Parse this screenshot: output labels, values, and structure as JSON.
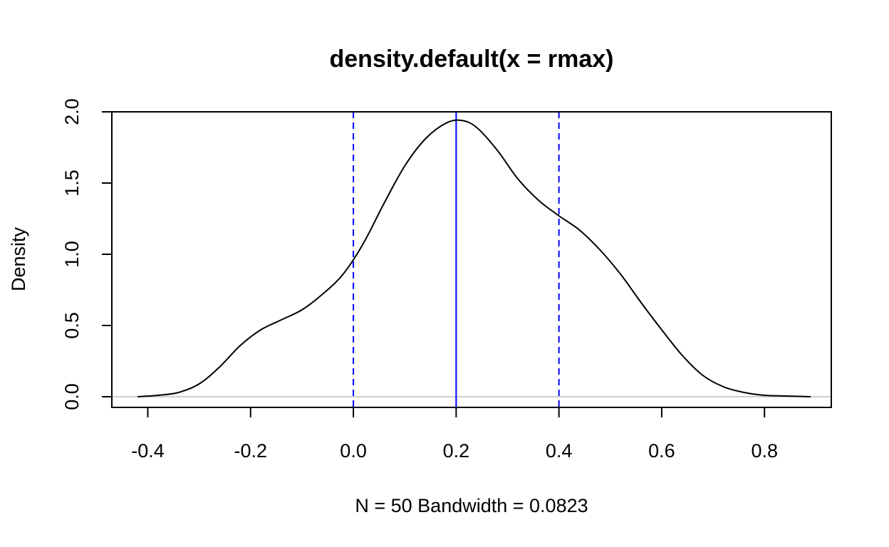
{
  "chart_data": {
    "type": "line",
    "title": "density.default(x = rmax)",
    "xlabel": "N = 50   Bandwidth = 0.0823",
    "ylabel": "Density",
    "xlim": [
      -0.47,
      0.93
    ],
    "ylim": [
      -0.075,
      2.0
    ],
    "x_ticks": [
      -0.4,
      -0.2,
      0.0,
      0.2,
      0.4,
      0.6,
      0.8
    ],
    "x_tick_labels": [
      "-0.4",
      "-0.2",
      "0.0",
      "0.2",
      "0.4",
      "0.6",
      "0.8"
    ],
    "y_ticks": [
      0.0,
      0.5,
      1.0,
      1.5,
      2.0
    ],
    "y_tick_labels": [
      "0.0",
      "0.5",
      "1.0",
      "1.5",
      "2.0"
    ],
    "grid": false,
    "zero_line": {
      "y": 0,
      "color": "#bebebe"
    },
    "series": [
      {
        "color": "#000000",
        "x": [
          -0.42,
          -0.38,
          -0.34,
          -0.3,
          -0.26,
          -0.22,
          -0.18,
          -0.14,
          -0.1,
          -0.06,
          -0.02,
          0.02,
          0.06,
          0.1,
          0.14,
          0.18,
          0.21,
          0.24,
          0.28,
          0.32,
          0.36,
          0.4,
          0.44,
          0.48,
          0.52,
          0.56,
          0.6,
          0.64,
          0.68,
          0.72,
          0.76,
          0.8,
          0.84,
          0.89
        ],
        "y": [
          0.0,
          0.01,
          0.03,
          0.09,
          0.21,
          0.36,
          0.47,
          0.54,
          0.61,
          0.72,
          0.86,
          1.08,
          1.36,
          1.62,
          1.81,
          1.92,
          1.94,
          1.89,
          1.73,
          1.53,
          1.38,
          1.27,
          1.17,
          1.03,
          0.86,
          0.66,
          0.47,
          0.29,
          0.15,
          0.07,
          0.03,
          0.01,
          0.005,
          0.0
        ]
      }
    ],
    "vlines": [
      {
        "x": 0.0,
        "color": "#0000ff",
        "style": "dashed"
      },
      {
        "x": 0.2,
        "color": "#0000ff",
        "style": "solid"
      },
      {
        "x": 0.4,
        "color": "#0000ff",
        "style": "dashed"
      }
    ]
  }
}
